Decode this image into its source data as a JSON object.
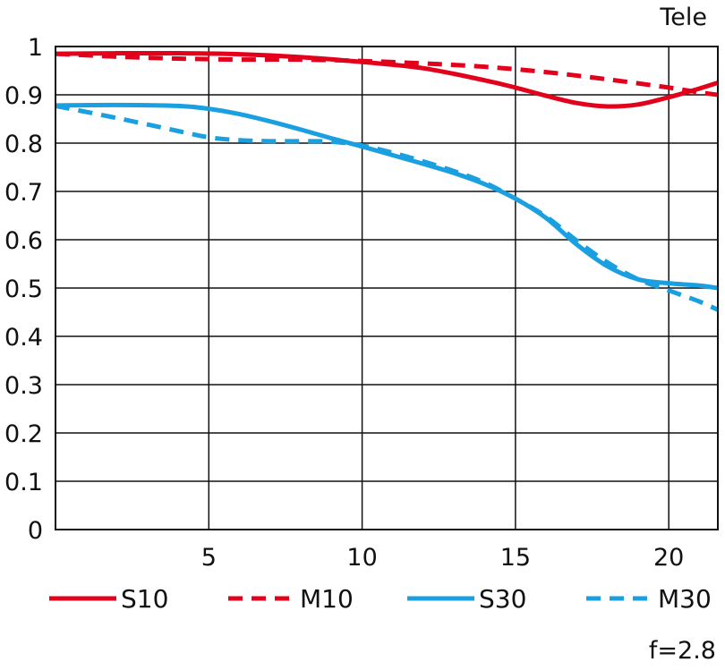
{
  "chart_data": {
    "type": "line",
    "title": "Tele",
    "note": "f=2.8",
    "xlabel": "",
    "ylabel": "",
    "xlim": [
      0,
      21.6
    ],
    "ylim": [
      0,
      1
    ],
    "x_ticks": [
      5,
      10,
      15,
      20
    ],
    "y_ticks": [
      0,
      0.1,
      0.2,
      0.3,
      0.4,
      0.5,
      0.6,
      0.7,
      0.8,
      0.9,
      1
    ],
    "y_tick_labels": [
      "0",
      "0.1",
      "0.2",
      "0.3",
      "0.4",
      "0.5",
      "0.6",
      "0.7",
      "0.8",
      "0.9",
      "1"
    ],
    "grid": true,
    "legend_position": "bottom",
    "colors": {
      "red": "#e3001b",
      "blue": "#1a9fe0"
    },
    "series": [
      {
        "name": "S10",
        "color": "#e3001b",
        "dash": "solid",
        "x": [
          0,
          2,
          4,
          6,
          8,
          10,
          12,
          14,
          15,
          16,
          17,
          18,
          19,
          20,
          21,
          21.6
        ],
        "y": [
          0.985,
          0.986,
          0.986,
          0.984,
          0.978,
          0.968,
          0.955,
          0.93,
          0.915,
          0.898,
          0.883,
          0.876,
          0.88,
          0.895,
          0.913,
          0.925
        ]
      },
      {
        "name": "M10",
        "color": "#e3001b",
        "dash": "dashed",
        "x": [
          0,
          2,
          4,
          6,
          8,
          10,
          12,
          14,
          16,
          18,
          20,
          21,
          21.6
        ],
        "y": [
          0.985,
          0.979,
          0.975,
          0.973,
          0.973,
          0.97,
          0.965,
          0.958,
          0.947,
          0.932,
          0.915,
          0.905,
          0.9
        ]
      },
      {
        "name": "S30",
        "color": "#1a9fe0",
        "dash": "solid",
        "x": [
          0,
          2,
          4,
          5,
          6,
          7,
          8,
          9,
          10,
          11,
          12,
          13,
          14,
          15,
          16,
          17,
          18,
          19,
          20,
          21,
          21.6
        ],
        "y": [
          0.878,
          0.879,
          0.877,
          0.871,
          0.86,
          0.845,
          0.828,
          0.81,
          0.793,
          0.775,
          0.757,
          0.738,
          0.715,
          0.685,
          0.645,
          0.59,
          0.545,
          0.518,
          0.51,
          0.505,
          0.5
        ]
      },
      {
        "name": "M30",
        "color": "#1a9fe0",
        "dash": "dashed",
        "x": [
          0,
          2,
          4,
          5,
          6,
          7,
          8,
          9,
          10,
          11,
          12,
          13,
          14,
          15,
          16,
          17,
          18,
          19,
          20,
          21,
          21.6
        ],
        "y": [
          0.877,
          0.852,
          0.825,
          0.812,
          0.806,
          0.804,
          0.804,
          0.803,
          0.795,
          0.78,
          0.762,
          0.742,
          0.718,
          0.685,
          0.648,
          0.598,
          0.553,
          0.518,
          0.495,
          0.472,
          0.455
        ]
      }
    ]
  }
}
